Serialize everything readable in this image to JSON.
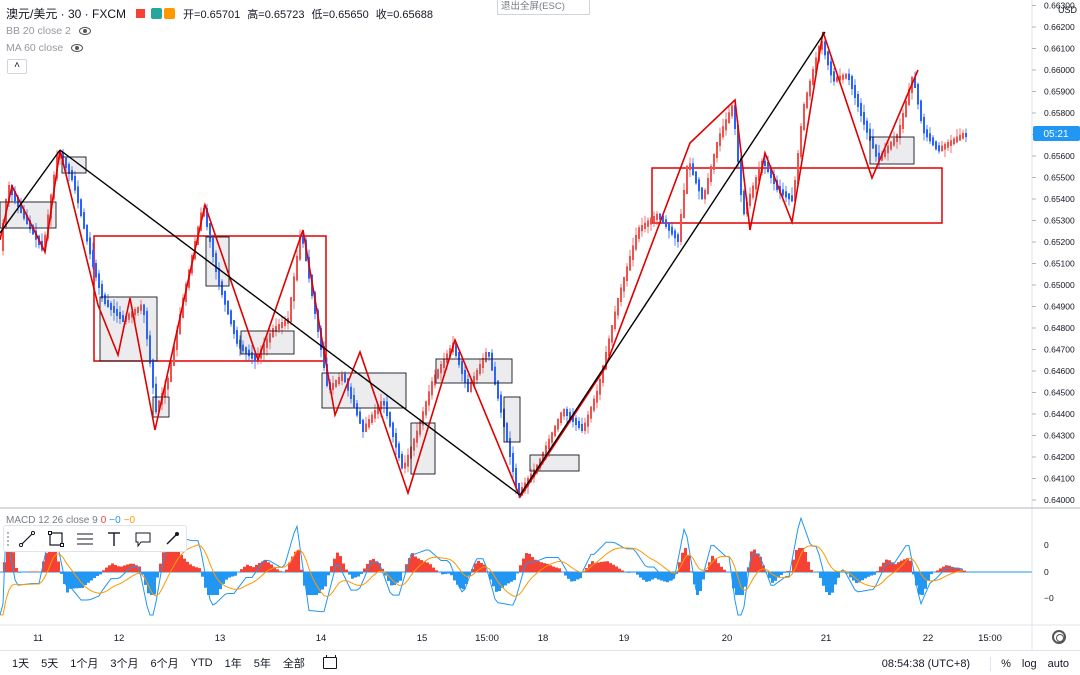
{
  "legend": {
    "symbol": "澳元/美元 · 30 · FXCM",
    "ohlc": {
      "open": "开=0.65701",
      "high": "高=0.65723",
      "low": "低=0.65650",
      "close": "收=0.65688"
    },
    "indicators": [
      "BB 20 close 2",
      "MA 60 close"
    ]
  },
  "exit_fullscreen": "退出全屏(ESC)",
  "price_axis": {
    "currency": "USD",
    "labels": [
      "0.66300",
      "0.66200",
      "0.66100",
      "0.66000",
      "0.65900",
      "0.65800",
      "0.65700",
      "0.65600",
      "0.65500",
      "0.65400",
      "0.65300",
      "0.65200",
      "0.65100",
      "0.65000",
      "0.64900",
      "0.64800",
      "0.64700",
      "0.64600",
      "0.64500",
      "0.64400",
      "0.64300",
      "0.64200",
      "0.64100",
      "0.64000"
    ],
    "countdown": "05:21",
    "macd_labels": [
      "0",
      "0",
      "−0"
    ]
  },
  "macd_legend": {
    "title": "MACD 12 26 close 9",
    "v1": "0",
    "v2": "−0",
    "v3": "−0"
  },
  "time_axis": {
    "labels": [
      "11",
      "12",
      "13",
      "14",
      "15",
      "15:00",
      "18",
      "19",
      "20",
      "21",
      "22",
      "15:00"
    ]
  },
  "timeframes": [
    "1天",
    "5天",
    "1个月",
    "3个月",
    "6个月",
    "YTD",
    "1年",
    "5年",
    "全部"
  ],
  "status": {
    "clock": "08:54:38 (UTC+8)",
    "percent": "%",
    "log": "log",
    "auto": "auto"
  },
  "drawing_tools": [
    "trend-line-tool",
    "rectangle-tool",
    "fib-tool",
    "text-tool",
    "callout-tool",
    "brush-tool"
  ],
  "colors": {
    "up": "#ef5350",
    "down": "#2962ff",
    "zigzag": "#e00000",
    "trendline": "#000000",
    "macd_line": "#2196f3",
    "signal_line": "#ff9800",
    "hist_pos": "#f44336",
    "hist_neg": "#2196f3",
    "price_tag": "#2196f3"
  }
}
